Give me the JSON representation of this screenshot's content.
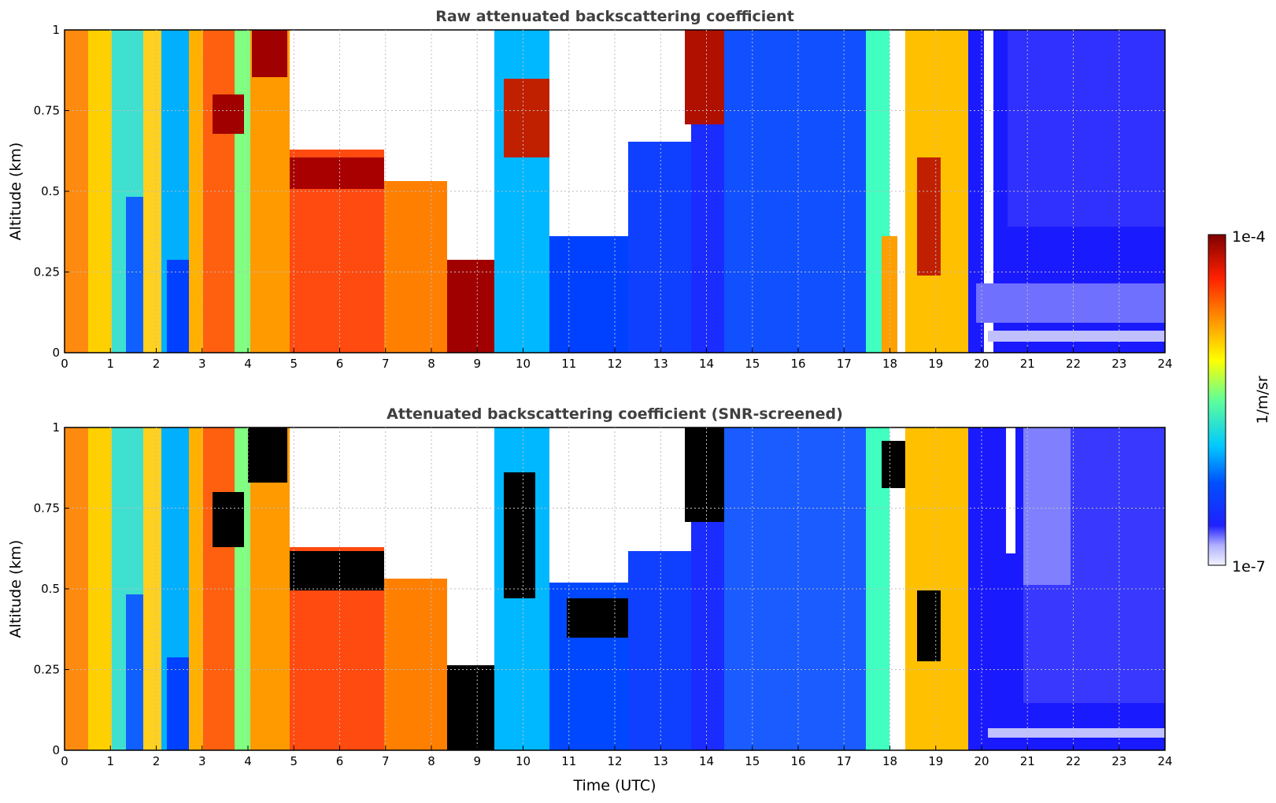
{
  "chart_data": [
    {
      "type": "heatmap",
      "title": "Raw attenuated backscattering coefficient",
      "xlabel": "",
      "ylabel": "Altitude (km)",
      "xlim": [
        0,
        24
      ],
      "ylim": [
        0,
        1
      ],
      "xticks": [
        "0",
        "1",
        "2",
        "3",
        "4",
        "5",
        "6",
        "7",
        "8",
        "9",
        "10",
        "11",
        "12",
        "13",
        "14",
        "15",
        "16",
        "17",
        "18",
        "19",
        "20",
        "21",
        "22",
        "23",
        "24"
      ],
      "yticks": [
        "0",
        "0.25",
        "0.5",
        "0.75",
        "1"
      ],
      "grid": true,
      "colormap": "jet (log scale)",
      "screened": false
    },
    {
      "type": "heatmap",
      "title": "Attenuated backscattering coefficient (SNR-screened)",
      "xlabel": "Time (UTC)",
      "ylabel": "Altitude (km)",
      "xlim": [
        0,
        24
      ],
      "ylim": [
        0,
        1
      ],
      "xticks": [
        "0",
        "1",
        "2",
        "3",
        "4",
        "5",
        "6",
        "7",
        "8",
        "9",
        "10",
        "11",
        "12",
        "13",
        "14",
        "15",
        "16",
        "17",
        "18",
        "19",
        "20",
        "21",
        "22",
        "23",
        "24"
      ],
      "yticks": [
        "0",
        "0.25",
        "0.5",
        "0.75",
        "1"
      ],
      "grid": true,
      "colormap": "jet (log scale)",
      "screened": true
    }
  ],
  "colorbar": {
    "min_label": "1e-7",
    "max_label": "1e-4",
    "unit_label": "1/m/sr",
    "scale": "log"
  }
}
